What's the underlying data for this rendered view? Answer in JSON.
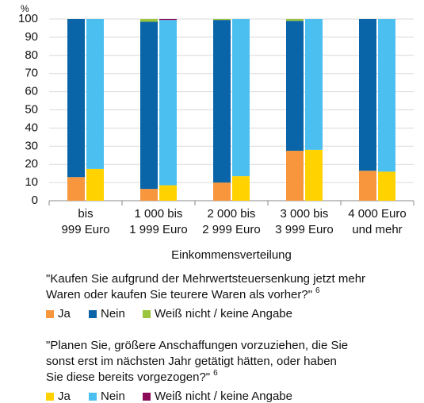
{
  "chart_data": {
    "type": "bar",
    "stacked": true,
    "y_unit": "%",
    "x_label": "Einkommensverteilung",
    "categories": [
      [
        "bis",
        "999 Euro"
      ],
      [
        "1 000 bis",
        "1 999 Euro"
      ],
      [
        "2 000 bis",
        "2 999 Euro"
      ],
      [
        "3 000 bis",
        "3 999 Euro"
      ],
      [
        "4 000 Euro",
        "und mehr"
      ]
    ],
    "ylim": [
      0,
      100
    ],
    "yticks": [
      0,
      10,
      20,
      30,
      40,
      50,
      60,
      70,
      80,
      90,
      100
    ],
    "grid": true,
    "groups": [
      {
        "question": [
          "\"Kaufen Sie aufgrund der Mehrwertsteuersenkung jetzt mehr",
          "Waren oder kaufen Sie teurere Waren als vorher?\""
        ],
        "footnote": "6",
        "series": [
          {
            "name": "Ja",
            "color": "#f7963c",
            "values": [
              13,
              6.5,
              10,
              27.5,
              16.5
            ]
          },
          {
            "name": "Nein",
            "color": "#0a64a8",
            "values": [
              87,
              92,
              89.5,
              71.5,
              83.5
            ]
          },
          {
            "name": "Weiß nicht / keine Angabe",
            "color": "#9bc53d",
            "values": [
              0,
              1.5,
              0.5,
              1,
              0
            ]
          }
        ]
      },
      {
        "question": [
          "\"Planen Sie, größere Anschaffungen vorzuziehen, die Sie",
          "sonst erst im nächsten Jahr getätigt hätten, oder haben",
          "Sie diese bereits vorgezogen?\""
        ],
        "footnote": "6",
        "series": [
          {
            "name": "Ja",
            "color": "#ffd200",
            "values": [
              17.5,
              8.5,
              13.5,
              28,
              16
            ]
          },
          {
            "name": "Nein",
            "color": "#4bbfef",
            "values": [
              82.5,
              91,
              86.5,
              72,
              84
            ]
          },
          {
            "name": "Weiß nicht / keine Angabe",
            "color": "#8b0a5a",
            "values": [
              0,
              0.5,
              0,
              0,
              0
            ]
          }
        ]
      }
    ]
  }
}
